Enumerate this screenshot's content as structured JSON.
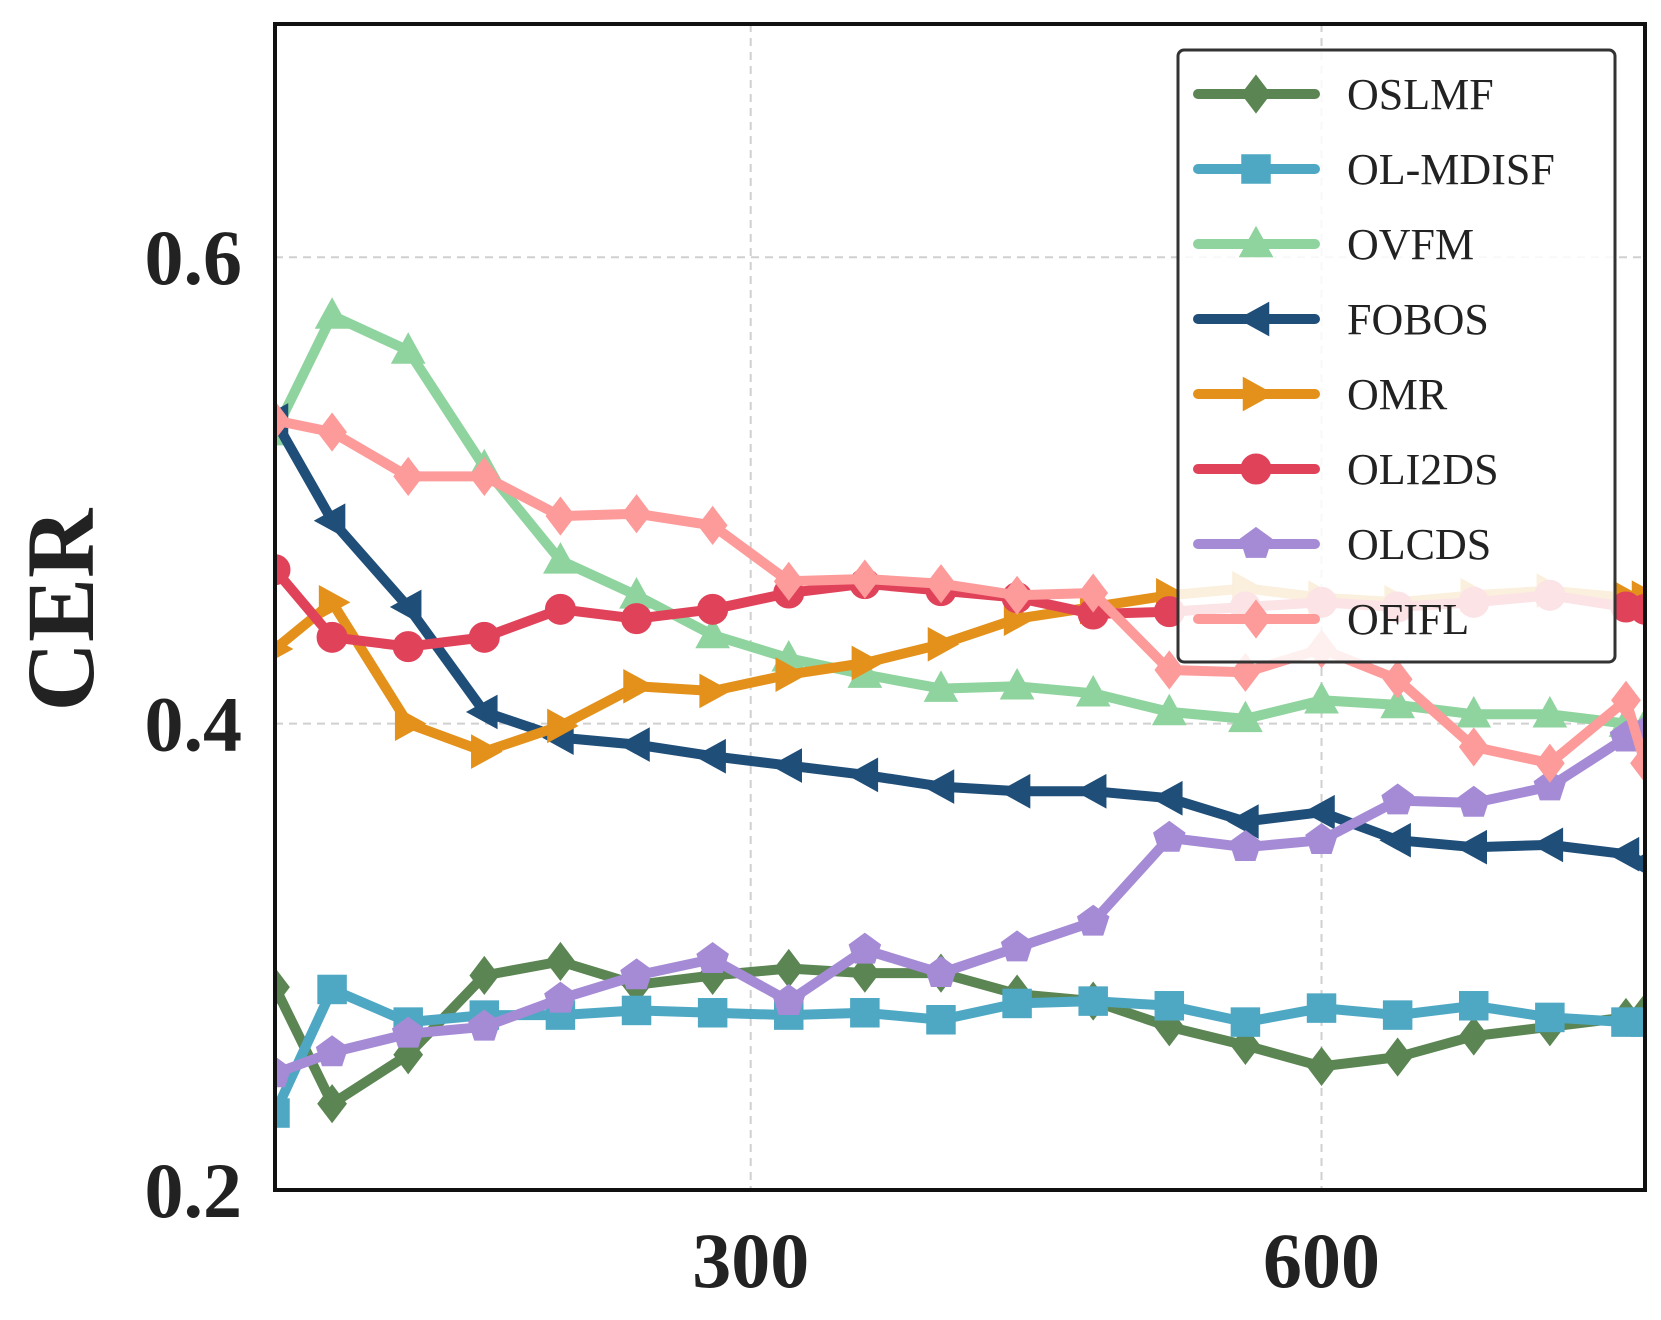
{
  "chart_data": {
    "type": "line",
    "title": "",
    "xlabel": "",
    "ylabel": "CER",
    "xlim": [
      50,
      770
    ],
    "ylim": [
      0.2,
      0.7
    ],
    "xticks": [
      300,
      600
    ],
    "yticks": [
      0.2,
      0.4,
      0.6
    ],
    "xtick_labels": [
      "300",
      "600"
    ],
    "ytick_labels": [
      "0.2",
      "0.4",
      "0.6"
    ],
    "grid": true,
    "legend_position": "top-right",
    "series": [
      {
        "name": "OSLMF",
        "color": "#5b8553",
        "marker": "diamond",
        "x": [
          50,
          80,
          120,
          160,
          200,
          240,
          280,
          320,
          360,
          400,
          440,
          480,
          520,
          560,
          600,
          640,
          680,
          720,
          760,
          770
        ],
        "y": [
          0.287,
          0.237,
          0.258,
          0.292,
          0.298,
          0.288,
          0.292,
          0.295,
          0.293,
          0.293,
          0.284,
          0.281,
          0.27,
          0.262,
          0.253,
          0.257,
          0.266,
          0.27,
          0.274,
          0.276
        ]
      },
      {
        "name": "OL-MDISF",
        "color": "#4ea8c4",
        "marker": "square",
        "x": [
          50,
          80,
          120,
          160,
          200,
          240,
          280,
          320,
          360,
          400,
          440,
          480,
          520,
          560,
          600,
          640,
          680,
          720,
          760,
          770
        ],
        "y": [
          0.233,
          0.286,
          0.272,
          0.275,
          0.275,
          0.277,
          0.276,
          0.275,
          0.276,
          0.273,
          0.28,
          0.281,
          0.279,
          0.272,
          0.278,
          0.275,
          0.279,
          0.274,
          0.272,
          0.272
        ]
      },
      {
        "name": "OVFM",
        "color": "#8fd39e",
        "marker": "triangle-up",
        "x": [
          50,
          80,
          120,
          160,
          200,
          240,
          280,
          320,
          360,
          400,
          440,
          480,
          520,
          560,
          600,
          640,
          680,
          720,
          760,
          770
        ],
        "y": [
          0.525,
          0.575,
          0.56,
          0.51,
          0.47,
          0.455,
          0.438,
          0.428,
          0.421,
          0.415,
          0.416,
          0.413,
          0.405,
          0.402,
          0.41,
          0.408,
          0.404,
          0.404,
          0.4,
          0.399
        ]
      },
      {
        "name": "FOBOS",
        "color": "#1f4e79",
        "marker": "triangle-left",
        "x": [
          50,
          80,
          120,
          160,
          200,
          240,
          280,
          320,
          360,
          400,
          440,
          480,
          520,
          560,
          600,
          640,
          680,
          720,
          760,
          770
        ],
        "y": [
          0.53,
          0.487,
          0.45,
          0.405,
          0.394,
          0.391,
          0.386,
          0.382,
          0.378,
          0.373,
          0.371,
          0.371,
          0.368,
          0.358,
          0.362,
          0.35,
          0.347,
          0.348,
          0.344,
          0.34
        ]
      },
      {
        "name": "OMR",
        "color": "#e3911b",
        "marker": "triangle-right",
        "x": [
          50,
          80,
          120,
          160,
          200,
          240,
          280,
          320,
          360,
          400,
          440,
          480,
          520,
          560,
          600,
          640,
          680,
          720,
          760,
          770
        ],
        "y": [
          0.432,
          0.452,
          0.4,
          0.388,
          0.399,
          0.416,
          0.414,
          0.421,
          0.426,
          0.434,
          0.445,
          0.45,
          0.455,
          0.458,
          0.454,
          0.452,
          0.455,
          0.457,
          0.454,
          0.454
        ]
      },
      {
        "name": "OLI2DS",
        "color": "#e0425a",
        "marker": "circle",
        "x": [
          50,
          80,
          120,
          160,
          200,
          240,
          280,
          320,
          360,
          400,
          440,
          480,
          520,
          560,
          600,
          640,
          680,
          720,
          760,
          770
        ],
        "y": [
          0.466,
          0.437,
          0.433,
          0.437,
          0.449,
          0.445,
          0.449,
          0.456,
          0.46,
          0.457,
          0.454,
          0.447,
          0.448,
          0.45,
          0.452,
          0.45,
          0.452,
          0.455,
          0.45,
          0.449
        ]
      },
      {
        "name": "OLCDS",
        "color": "#a58bd5",
        "marker": "pentagon",
        "x": [
          50,
          80,
          120,
          160,
          200,
          240,
          280,
          320,
          360,
          400,
          440,
          480,
          520,
          560,
          600,
          640,
          680,
          720,
          760,
          770
        ],
        "y": [
          0.25,
          0.259,
          0.267,
          0.27,
          0.282,
          0.292,
          0.299,
          0.281,
          0.303,
          0.293,
          0.304,
          0.315,
          0.351,
          0.347,
          0.35,
          0.367,
          0.366,
          0.373,
          0.394,
          0.396
        ]
      },
      {
        "name": "OFIFL",
        "color": "#fd9a9a",
        "marker": "diamond",
        "x": [
          50,
          80,
          120,
          160,
          200,
          240,
          280,
          320,
          360,
          400,
          440,
          480,
          520,
          560,
          600,
          640,
          680,
          720,
          760,
          770
        ],
        "y": [
          0.53,
          0.525,
          0.506,
          0.506,
          0.489,
          0.49,
          0.485,
          0.461,
          0.462,
          0.46,
          0.455,
          0.456,
          0.423,
          0.422,
          0.432,
          0.419,
          0.39,
          0.383,
          0.41,
          0.383
        ]
      }
    ]
  }
}
